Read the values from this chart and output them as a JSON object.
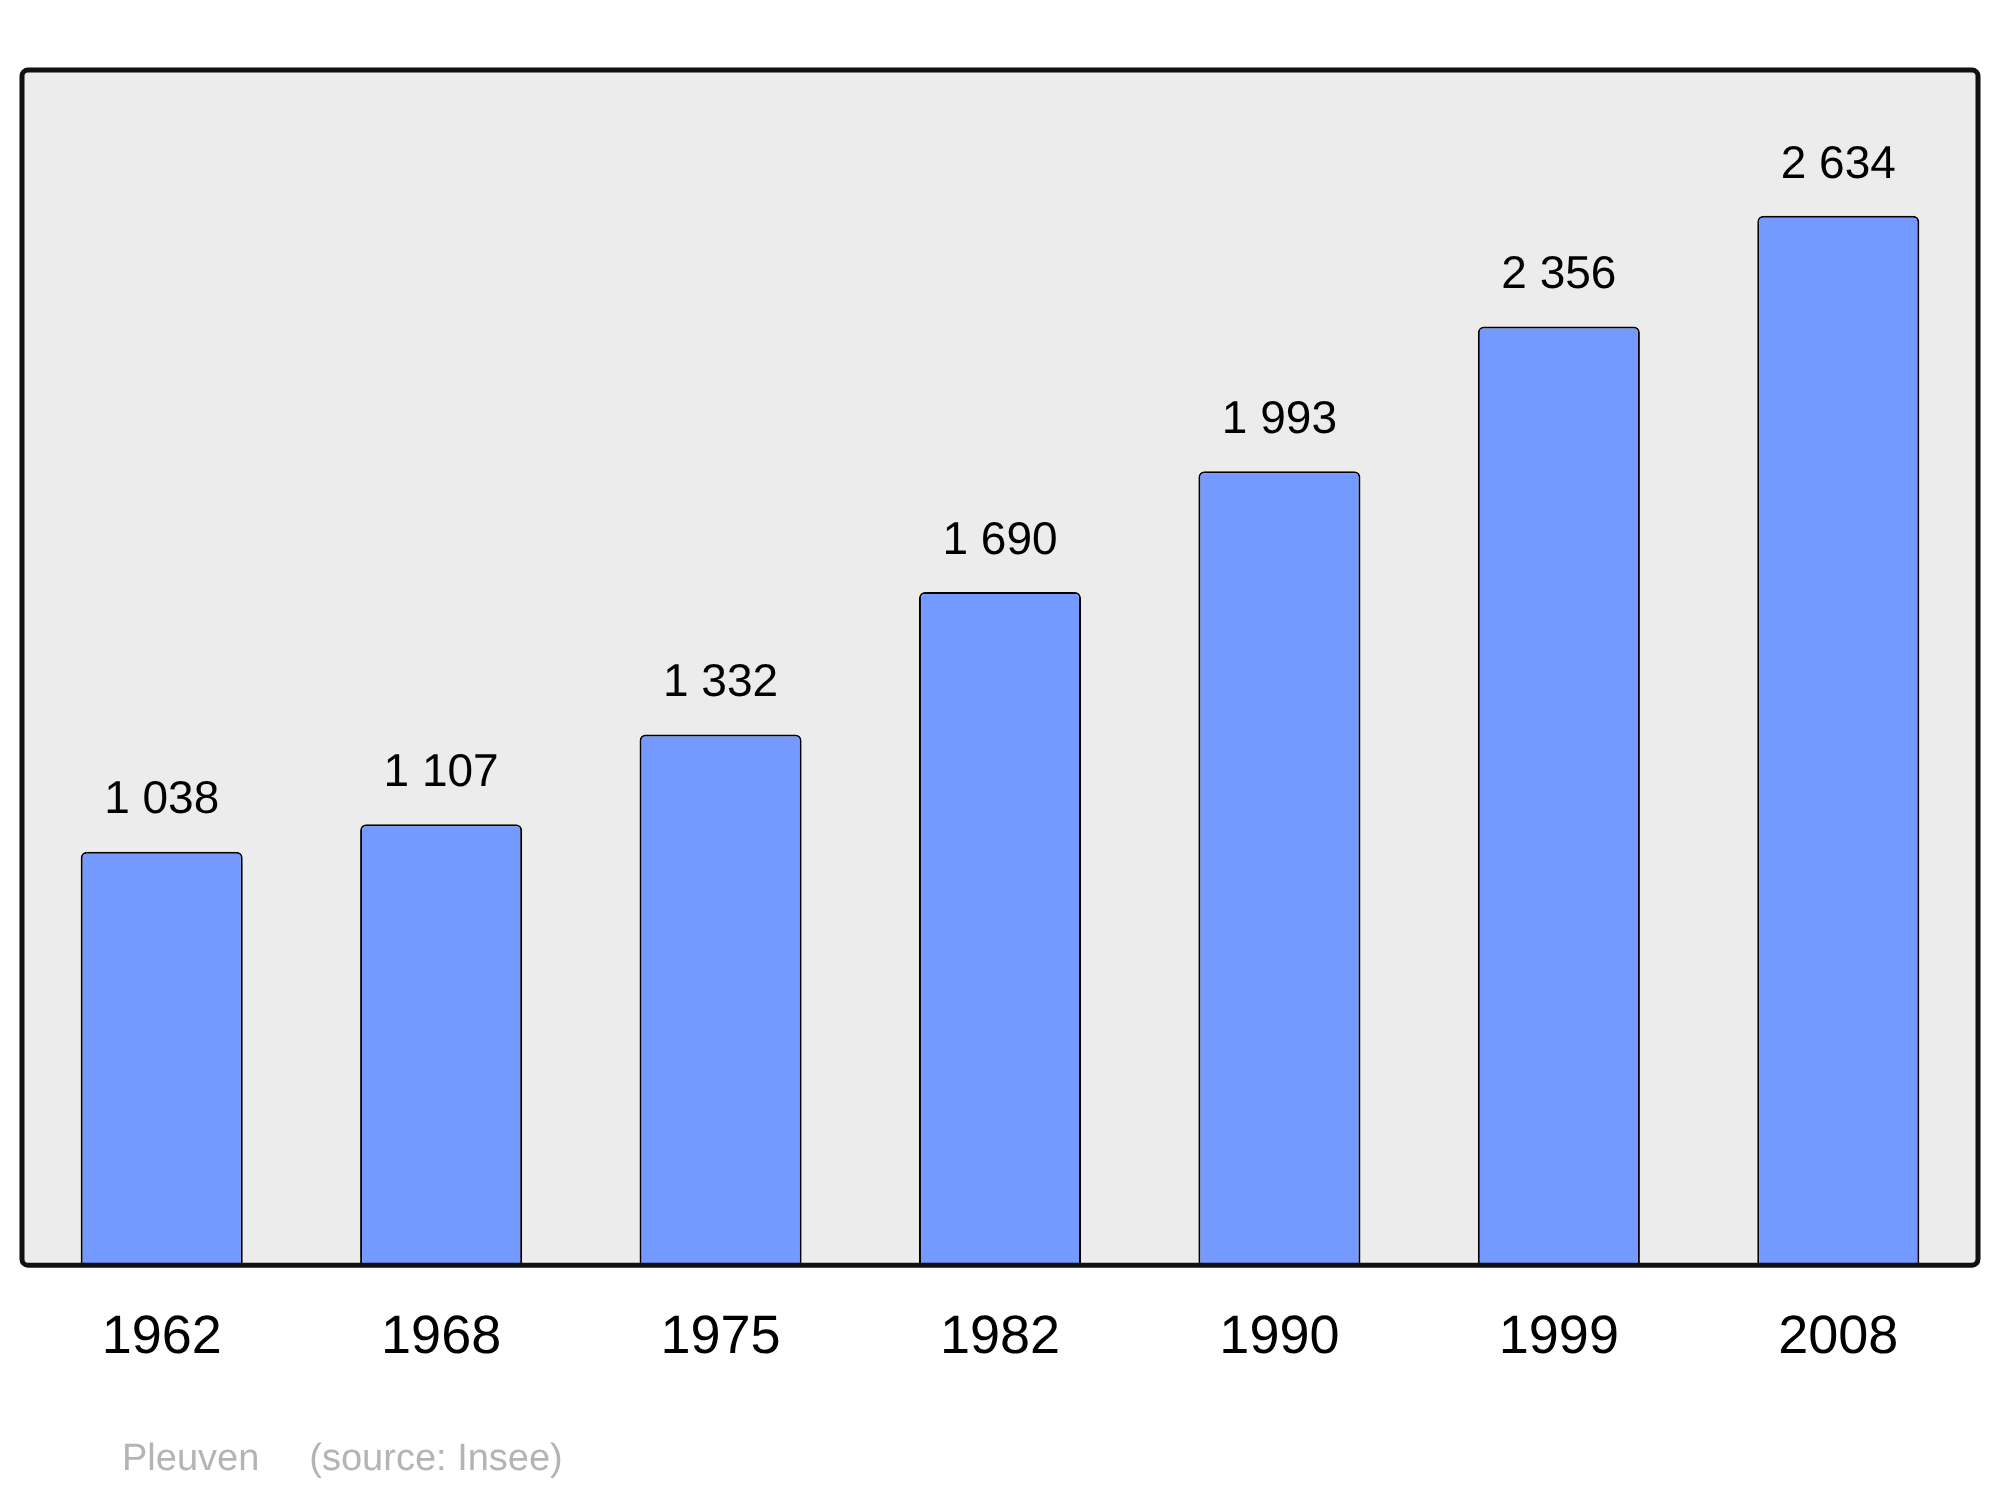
{
  "chart_data": {
    "type": "bar",
    "categories": [
      "1962",
      "1968",
      "1975",
      "1982",
      "1990",
      "1999",
      "2008"
    ],
    "values": [
      1038,
      1107,
      1332,
      1690,
      1993,
      2356,
      2634
    ],
    "value_labels": [
      "1 038",
      "1 107",
      "1 332",
      "1 690",
      "1 993",
      "2 356",
      "2 634"
    ],
    "color": "#7499ff",
    "grid": false,
    "legend": false,
    "annotations": [
      "Pleuven",
      "(source: Insee)"
    ]
  }
}
